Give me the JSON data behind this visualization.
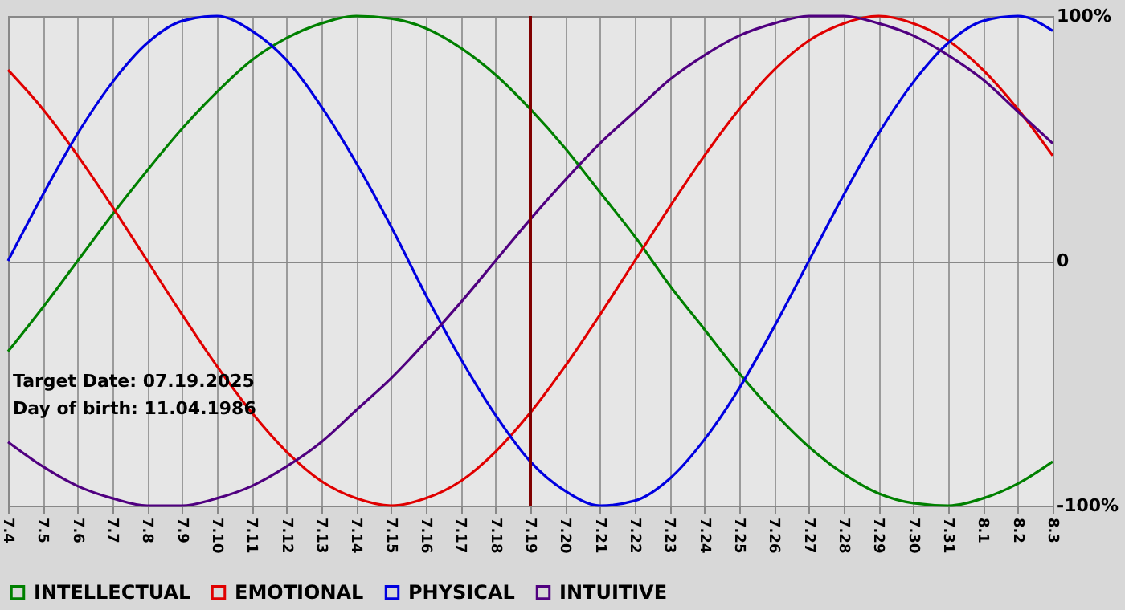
{
  "chart_data": {
    "type": "line",
    "categories": [
      "7.4",
      "7.5",
      "7.6",
      "7.7",
      "7.8",
      "7.9",
      "7.10",
      "7.11",
      "7.12",
      "7.13",
      "7.14",
      "7.15",
      "7.16",
      "7.17",
      "7.18",
      "7.19",
      "7.20",
      "7.21",
      "7.22",
      "7.23",
      "7.24",
      "7.25",
      "7.26",
      "7.27",
      "7.28",
      "7.29",
      "7.30",
      "7.31",
      "8.1",
      "8.2",
      "8.3"
    ],
    "series": [
      {
        "name": "INTELLECTUAL",
        "color": "#008000",
        "values": [
          -37,
          -19,
          0,
          19,
          37,
          54,
          69,
          82,
          91,
          97,
          100,
          99,
          95,
          87,
          76,
          62,
          46,
          28,
          10,
          -10,
          -28,
          -46,
          -62,
          -76,
          -87,
          -95,
          -99,
          -100,
          -97,
          -91,
          -82
        ]
      },
      {
        "name": "EMOTIONAL",
        "color": "#e00000",
        "values": [
          78,
          62,
          43,
          22,
          0,
          -22,
          -43,
          -62,
          -78,
          -90,
          -97,
          -100,
          -97,
          -90,
          -78,
          -62,
          -43,
          -22,
          0,
          22,
          43,
          62,
          78,
          90,
          97,
          100,
          97,
          90,
          78,
          62,
          43
        ]
      },
      {
        "name": "PHYSICAL",
        "color": "#0000e0",
        "values": [
          0,
          27,
          52,
          73,
          89,
          98,
          100,
          94,
          82,
          63,
          40,
          14,
          -14,
          -40,
          -63,
          -82,
          -94,
          -100,
          -98,
          -89,
          -73,
          -52,
          -27,
          0,
          27,
          52,
          73,
          89,
          98,
          100,
          94
        ]
      },
      {
        "name": "INTUITIVE",
        "color": "#500080",
        "values": [
          -74,
          -84,
          -92,
          -97,
          -100,
          -100,
          -97,
          -92,
          -84,
          -74,
          -61,
          -48,
          -33,
          -17,
          0,
          17,
          33,
          48,
          61,
          74,
          84,
          92,
          97,
          100,
          100,
          97,
          92,
          84,
          74,
          61,
          48
        ]
      }
    ],
    "ylim": [
      -100,
      100
    ],
    "yticks": [
      {
        "value": -100,
        "label": "-100%"
      },
      0,
      {
        "value": 100,
        "label": "100%"
      }
    ],
    "grid": true,
    "legend": "bottom",
    "ref_lines": [
      {
        "axis": "x",
        "value": "7.19",
        "color": "#800000"
      }
    ],
    "annotations": [
      "Target Date: 07.19.2025",
      "Day of birth: 11.04.1986"
    ]
  }
}
